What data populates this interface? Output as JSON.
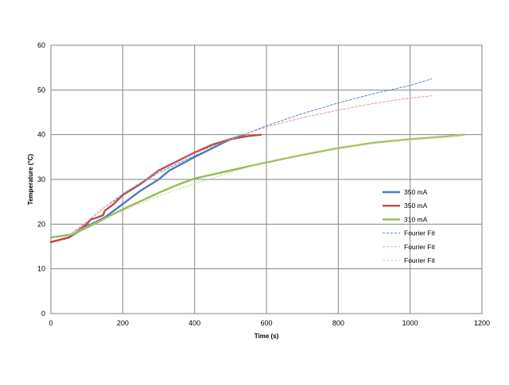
{
  "chart_data": {
    "type": "line",
    "title": "",
    "xlabel": "Time (s)",
    "ylabel": "Temperature (°C)",
    "xlim": [
      0,
      1200
    ],
    "ylim": [
      0,
      60
    ],
    "xticks": [
      0,
      200,
      400,
      600,
      800,
      1000,
      1200
    ],
    "yticks": [
      0,
      10,
      20,
      30,
      40,
      50,
      60
    ],
    "grid": true,
    "legend_position": "right",
    "series": [
      {
        "name": "350 mA",
        "color": "#4a7ebb",
        "style": "solid",
        "x": [
          0,
          50,
          100,
          150,
          200,
          250,
          300,
          330,
          400,
          450,
          500,
          540
        ],
        "y": [
          16,
          17,
          19.5,
          21.5,
          24.5,
          27.5,
          30,
          32,
          35,
          37,
          39,
          40
        ]
      },
      {
        "name": "350 mA",
        "color": "#be4b48",
        "style": "solid",
        "x": [
          0,
          50,
          100,
          110,
          130,
          145,
          150,
          175,
          200,
          250,
          300,
          350,
          400,
          450,
          500,
          550,
          585
        ],
        "y": [
          16,
          17,
          20,
          21,
          21.5,
          22,
          23,
          24.5,
          26.5,
          29,
          32,
          34,
          36,
          37.8,
          39,
          39.7,
          40
        ]
      },
      {
        "name": "310 mA",
        "color": "#98b954",
        "style": "solid",
        "x": [
          0,
          60,
          120,
          200,
          300,
          350,
          400,
          500,
          600,
          700,
          800,
          900,
          1000,
          1100,
          1150
        ],
        "y": [
          17,
          17.7,
          20,
          23.3,
          27,
          28.7,
          30.2,
          32,
          33.8,
          35.5,
          37,
          38.2,
          39,
          39.6,
          40
        ]
      },
      {
        "name": "Fourier Fit",
        "color": "#4a7ebb",
        "style": "dashed",
        "x": [
          50,
          100,
          150,
          200,
          300,
          400,
          500,
          600,
          700,
          800,
          900,
          1000,
          1060
        ],
        "y": [
          17.5,
          20.5,
          23.8,
          26.5,
          31.5,
          35.3,
          38.8,
          42,
          44.7,
          47.1,
          49.2,
          51,
          52.5
        ]
      },
      {
        "name": "Fourier Fit",
        "color": "#d99694",
        "style": "dashed",
        "x": [
          50,
          100,
          150,
          200,
          300,
          400,
          500,
          600,
          700,
          800,
          900,
          1000,
          1060
        ],
        "y": [
          17.5,
          20.5,
          23.8,
          26.8,
          31.8,
          35.8,
          39,
          41.7,
          43.8,
          45.5,
          47,
          48.2,
          48.7
        ]
      },
      {
        "name": "Fourier Fit",
        "color": "#c3d69b",
        "style": "dashed",
        "x": [
          50,
          100,
          200,
          300,
          400,
          500,
          600,
          700,
          800,
          900,
          1000,
          1100,
          1150
        ],
        "y": [
          17.5,
          19.5,
          23,
          26.3,
          29,
          31.6,
          33.9,
          35.6,
          37,
          38.1,
          39,
          39.6,
          40
        ]
      }
    ]
  }
}
